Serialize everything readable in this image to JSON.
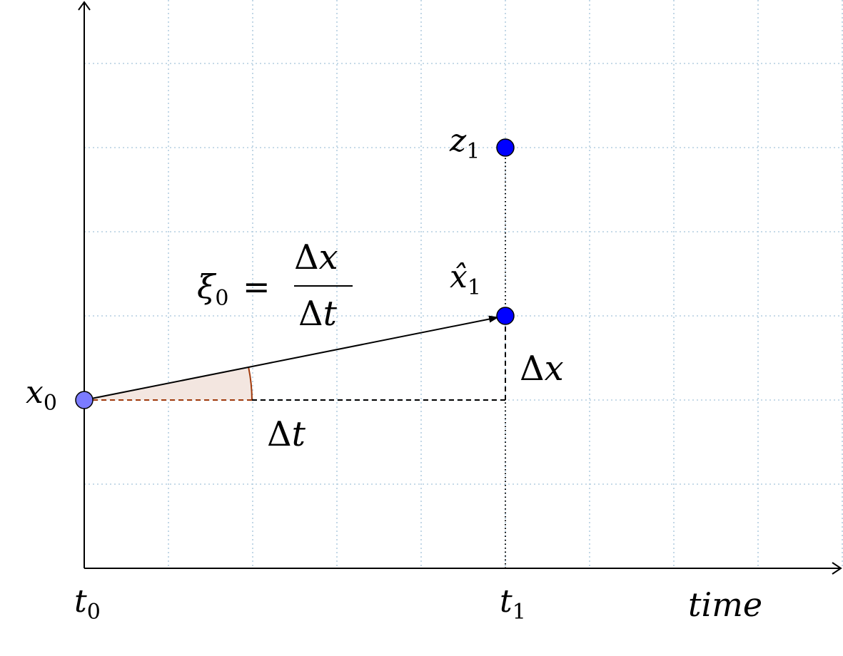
{
  "colors": {
    "grid": "#b3cde0",
    "axis": "#000000",
    "point_light": "#7b7bff",
    "point_dark": "#0000ff",
    "angle_fill": "#f3e6e0",
    "angle_stroke": "#a0390b"
  },
  "labels": {
    "x0_base": "x",
    "x0_sub": "0",
    "t0_base": "t",
    "t0_sub": "0",
    "t1_base": "t",
    "t1_sub": "1",
    "z1_base": "z",
    "z1_sub": "1",
    "xhat1_base": "x̂",
    "xhat1_sub": "1",
    "time": "time",
    "delta_x_symbol": "Δ",
    "delta_x_var": "x",
    "delta_t_symbol": "Δ",
    "delta_t_var": "t",
    "xi0_base": "ξ",
    "xi0_sub": "0",
    "equals": "=",
    "frac_num_symbol": "Δ",
    "frac_num_var": "x",
    "frac_den_symbol": "Δ",
    "frac_den_var": "t"
  }
}
